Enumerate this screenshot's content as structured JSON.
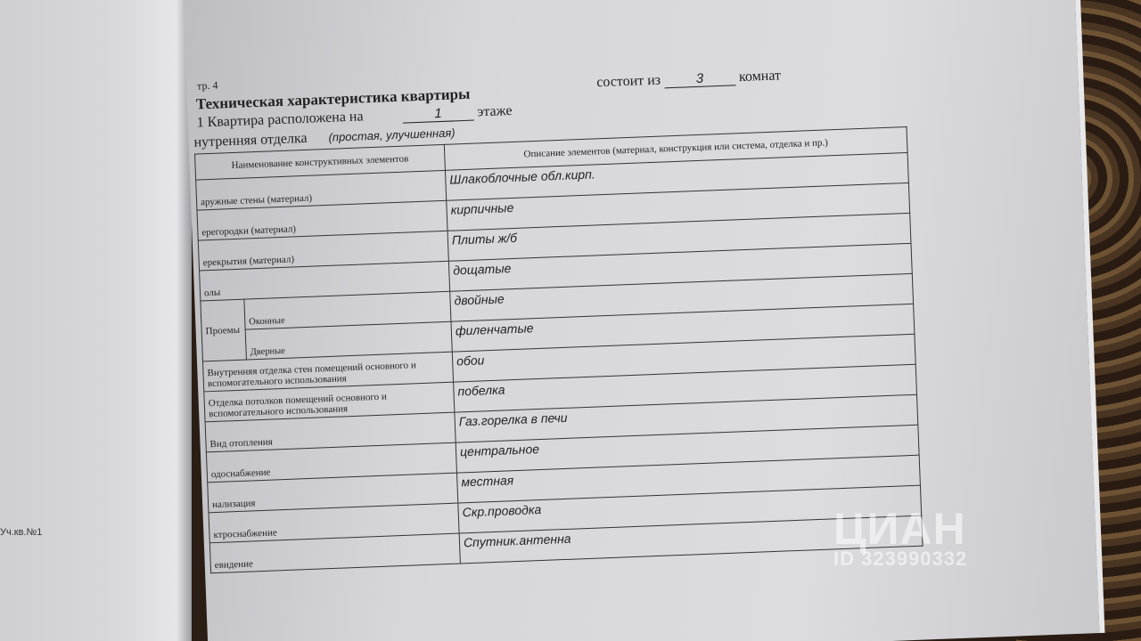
{
  "left_page": {
    "note": "Уч.кв.№1"
  },
  "header": {
    "page_number": "тр. 4",
    "title": "Техническая характеристика квартиры",
    "floor_label": "1 Квартира расположена на",
    "floor_value": "1",
    "floor_suffix": "этаже",
    "rooms_label": "состоит из",
    "rooms_value": "3",
    "rooms_suffix": "комнат",
    "finish_label": "нутренняя отделка",
    "finish_hint": "(простая, улучшенная)"
  },
  "table": {
    "col_name": "Наименование конструктивных элементов",
    "col_desc": "Описание элементов (материал, конструкция или система, отделка и пр.)",
    "rows": [
      {
        "name": "аружные стены (материал)",
        "value": "Шлакоблочные обл.кирп."
      },
      {
        "name": "ерегородки (материал)",
        "value": "кирпичные"
      },
      {
        "name": "ерекрытия (материал)",
        "value": "Плиты ж/б"
      },
      {
        "name": "олы",
        "value": "дощатые"
      },
      {
        "name": "Проемы",
        "sub": "Оконные",
        "value": "двойные"
      },
      {
        "sub": "Дверные",
        "value": "филенчатые"
      },
      {
        "name": "Внутренняя отделка стен помещений основного и вспомогательного использования",
        "value": "обои"
      },
      {
        "name": "Отделка потолков помещений основного и вспомогательного использования",
        "value": "побелка"
      },
      {
        "name": "Вид отопления",
        "value": "Газ.горелка в печи"
      },
      {
        "name": "одоснабжение",
        "value": "центральное"
      },
      {
        "name": "нализация",
        "value": "местная"
      },
      {
        "name": "ктроснабжение",
        "value": "Скр.проводка"
      },
      {
        "name": "евидение",
        "value": "Спутник.антенна"
      }
    ]
  },
  "watermark": {
    "logo": "ЦИАН",
    "id": "ID 323990332"
  }
}
